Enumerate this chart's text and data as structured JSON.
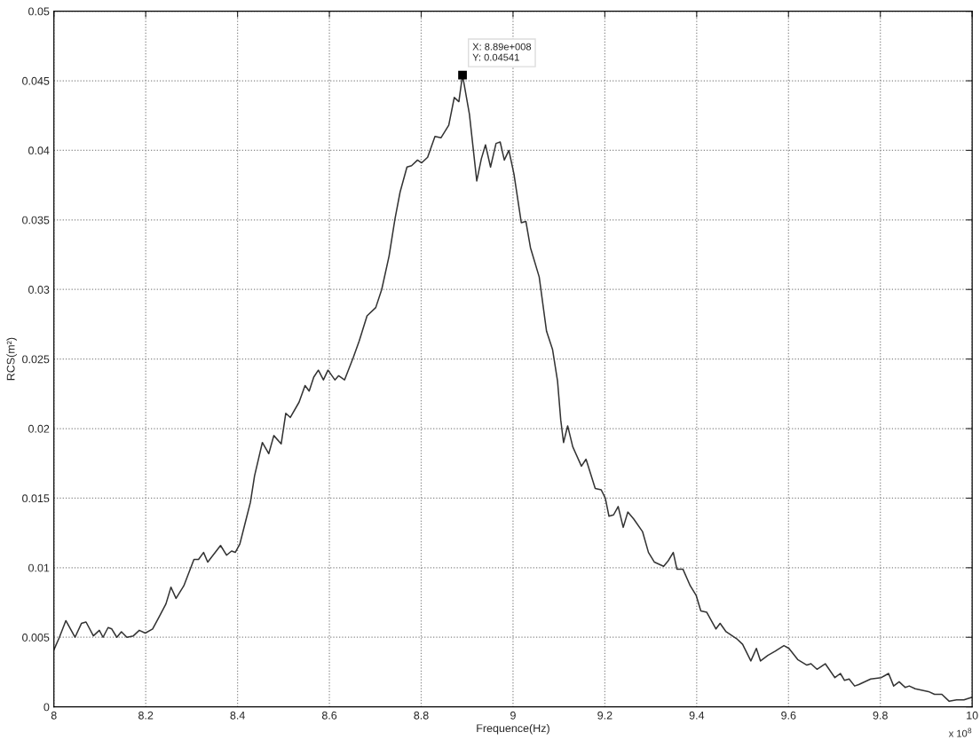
{
  "chart_data": {
    "type": "line",
    "xlabel": "Frequence(Hz)",
    "ylabel": "RCS(m²)",
    "xlim": [
      8,
      10
    ],
    "ylim": [
      0,
      0.05
    ],
    "xticks": [
      8,
      8.2,
      8.4,
      8.6,
      8.8,
      9,
      9.2,
      9.4,
      9.6,
      9.8,
      10
    ],
    "yticks": [
      0,
      0.005,
      0.01,
      0.015,
      0.02,
      0.025,
      0.03,
      0.035,
      0.04,
      0.045,
      0.05
    ],
    "grid": true,
    "line_style": "solid",
    "marker": "none",
    "series": [
      {
        "color": "#333333",
        "x": [
          8.0,
          8.012,
          8.026,
          8.046,
          8.06,
          8.07,
          8.086,
          8.099,
          8.107,
          8.118,
          8.126,
          8.137,
          8.147,
          8.159,
          8.173,
          8.186,
          8.199,
          8.215,
          8.228,
          8.244,
          8.255,
          8.266,
          8.283,
          8.305,
          8.315,
          8.326,
          8.335,
          8.363,
          8.376,
          8.387,
          8.395,
          8.405,
          8.418,
          8.428,
          8.437,
          8.454,
          8.468,
          8.479,
          8.495,
          8.505,
          8.515,
          8.534,
          8.547,
          8.556,
          8.566,
          8.576,
          8.587,
          8.597,
          8.612,
          8.62,
          8.633,
          8.652,
          8.665,
          8.682,
          8.701,
          8.714,
          8.73,
          8.743,
          8.754,
          8.769,
          8.779,
          8.792,
          8.801,
          8.814,
          8.83,
          8.843,
          8.86,
          8.872,
          8.882,
          8.89,
          8.905,
          8.921,
          8.931,
          8.94,
          8.951,
          8.963,
          8.972,
          8.981,
          8.991,
          9.002,
          9.018,
          9.028,
          9.038,
          9.057,
          9.073,
          9.086,
          9.097,
          9.104,
          9.11,
          9.119,
          9.13,
          9.149,
          9.159,
          9.179,
          9.192,
          9.201,
          9.209,
          9.219,
          9.229,
          9.24,
          9.25,
          9.263,
          9.282,
          9.295,
          9.308,
          9.328,
          9.338,
          9.349,
          9.357,
          9.37,
          9.386,
          9.399,
          9.409,
          9.422,
          9.442,
          9.451,
          9.464,
          9.487,
          9.5,
          9.518,
          9.53,
          9.539,
          9.555,
          9.571,
          9.59,
          9.601,
          9.62,
          9.64,
          9.649,
          9.662,
          9.68,
          9.701,
          9.713,
          9.722,
          9.732,
          9.744,
          9.753,
          9.779,
          9.802,
          9.818,
          9.829,
          9.841,
          9.854,
          9.863,
          9.876,
          9.905,
          9.918,
          9.934,
          9.95,
          9.966,
          9.982,
          10.0
        ],
        "values": [
          0.0041,
          0.005,
          0.0062,
          0.005,
          0.006,
          0.0061,
          0.0051,
          0.0055,
          0.005,
          0.0057,
          0.0056,
          0.005,
          0.0054,
          0.005,
          0.0051,
          0.0055,
          0.0053,
          0.0056,
          0.0064,
          0.0074,
          0.0086,
          0.0078,
          0.0087,
          0.0106,
          0.0106,
          0.0111,
          0.0104,
          0.0116,
          0.0109,
          0.0112,
          0.0111,
          0.0117,
          0.0134,
          0.0147,
          0.0166,
          0.019,
          0.0182,
          0.0195,
          0.0189,
          0.0211,
          0.0208,
          0.0219,
          0.0231,
          0.0227,
          0.0237,
          0.0242,
          0.0235,
          0.0242,
          0.0235,
          0.0238,
          0.0235,
          0.0251,
          0.0263,
          0.0281,
          0.0287,
          0.03,
          0.0324,
          0.0351,
          0.037,
          0.0388,
          0.0389,
          0.0393,
          0.0391,
          0.0395,
          0.041,
          0.0409,
          0.0418,
          0.0438,
          0.0435,
          0.04541,
          0.0426,
          0.0378,
          0.0394,
          0.0404,
          0.0388,
          0.0405,
          0.0406,
          0.0393,
          0.04,
          0.0383,
          0.0348,
          0.0349,
          0.033,
          0.0309,
          0.027,
          0.0257,
          0.0234,
          0.0206,
          0.019,
          0.0202,
          0.0187,
          0.0173,
          0.0178,
          0.0157,
          0.0156,
          0.015,
          0.0137,
          0.0138,
          0.0144,
          0.0129,
          0.014,
          0.0135,
          0.0126,
          0.0111,
          0.0104,
          0.0101,
          0.0105,
          0.0111,
          0.0099,
          0.0099,
          0.0087,
          0.008,
          0.0069,
          0.0068,
          0.0056,
          0.006,
          0.0054,
          0.0049,
          0.0045,
          0.0033,
          0.0042,
          0.0033,
          0.0037,
          0.004,
          0.0044,
          0.0042,
          0.0034,
          0.003,
          0.0031,
          0.0027,
          0.0031,
          0.0021,
          0.0024,
          0.0019,
          0.002,
          0.0015,
          0.0016,
          0.002,
          0.0021,
          0.0024,
          0.0015,
          0.0018,
          0.0014,
          0.0015,
          0.0013,
          0.0011,
          0.0009,
          0.0009,
          0.0004,
          0.0005,
          0.0005,
          0.0007
        ]
      }
    ],
    "annotations": [
      {
        "text": "X: 8.89e+008\nY: 0.04541",
        "x": 8.89,
        "y": 0.04541
      },
      "x 10$^{8}$"
    ]
  }
}
